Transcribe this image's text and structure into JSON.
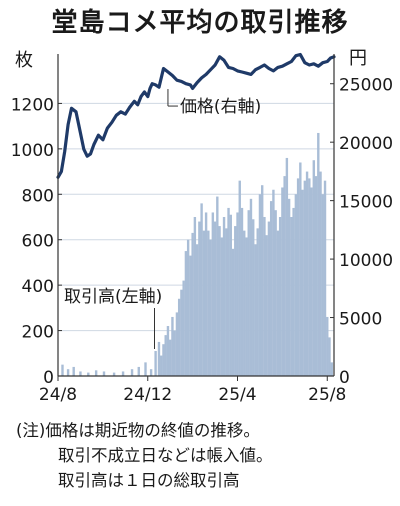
{
  "title": "堂島コメ平均の取引推移",
  "notes": {
    "line1": "(注)価格は期近物の終値の推移。",
    "line2": "取引不成立日などは帳入値。",
    "line3": "取引高は１日の総取引高"
  },
  "chart_data": {
    "type": "bar+line",
    "title": "堂島コメ平均の取引推移",
    "left_axis": {
      "unit": "枚",
      "ylim": [
        0,
        1400
      ],
      "ticks": [
        0,
        200,
        400,
        600,
        800,
        1000,
        1200
      ]
    },
    "right_axis": {
      "unit": "円",
      "ylim": [
        0,
        27200
      ],
      "ticks": [
        0,
        5000,
        10000,
        15000,
        20000,
        25000
      ]
    },
    "x_ticks": [
      "24/8",
      "24/12",
      "25/4",
      "25/8"
    ],
    "x_tick_positions": [
      0,
      4,
      8,
      12
    ],
    "x_range_months": [
      0,
      12.3
    ],
    "annotations": {
      "price": "価格(右軸)",
      "volume": "取引高(左軸)"
    },
    "colors": {
      "line": "#1f3a68",
      "bars": "#a9bdd6",
      "grid": "#cfd8e3"
    },
    "grid": true,
    "series": [
      {
        "name": "価格(右軸)",
        "kind": "line",
        "axis": "right",
        "x": [
          0,
          0.15,
          0.3,
          0.45,
          0.6,
          0.8,
          1.0,
          1.15,
          1.3,
          1.45,
          1.6,
          1.8,
          2.0,
          2.2,
          2.4,
          2.6,
          2.8,
          3.0,
          3.2,
          3.4,
          3.55,
          3.7,
          3.85,
          4.0,
          4.1,
          4.2,
          4.35,
          4.5,
          4.7,
          4.9,
          5.1,
          5.3,
          5.5,
          5.7,
          5.9,
          6.0,
          6.2,
          6.4,
          6.6,
          6.8,
          7.0,
          7.2,
          7.4,
          7.6,
          7.8,
          8.0,
          8.2,
          8.4,
          8.6,
          8.8,
          9.0,
          9.2,
          9.4,
          9.6,
          9.8,
          10.0,
          10.2,
          10.4,
          10.6,
          10.8,
          11.0,
          11.2,
          11.4,
          11.6,
          11.8,
          12.0,
          12.15,
          12.3
        ],
        "values": [
          17000,
          17500,
          19200,
          21500,
          22900,
          22600,
          20800,
          19400,
          18800,
          19000,
          19800,
          20600,
          20200,
          21200,
          21700,
          22300,
          22600,
          22400,
          23000,
          23500,
          23200,
          23900,
          24300,
          23900,
          24600,
          25000,
          24900,
          24700,
          26300,
          26000,
          25700,
          25300,
          25200,
          25000,
          24900,
          24600,
          25100,
          25500,
          25800,
          26200,
          26600,
          27300,
          27000,
          26400,
          26300,
          26100,
          26000,
          25900,
          25800,
          26200,
          26400,
          26600,
          26300,
          26100,
          26400,
          26500,
          26700,
          26900,
          27400,
          27500,
          26800,
          26600,
          26700,
          26500,
          26800,
          26900,
          27200,
          27300
        ]
      },
      {
        "name": "取引高(左軸)",
        "kind": "bar",
        "axis": "left",
        "x": [
          0.2,
          0.45,
          0.7,
          1.0,
          1.35,
          1.7,
          2.05,
          2.5,
          2.9,
          3.3,
          3.6,
          3.9,
          4.15,
          4.35,
          4.5,
          4.6,
          4.7,
          4.8,
          4.9,
          5.0,
          5.1,
          5.2,
          5.3,
          5.4,
          5.5,
          5.6,
          5.7,
          5.8,
          5.9,
          6.0,
          6.1,
          6.2,
          6.3,
          6.4,
          6.5,
          6.6,
          6.7,
          6.8,
          6.9,
          7.0,
          7.1,
          7.2,
          7.3,
          7.4,
          7.5,
          7.6,
          7.7,
          7.8,
          7.9,
          8.0,
          8.1,
          8.2,
          8.3,
          8.4,
          8.5,
          8.6,
          8.7,
          8.8,
          8.9,
          9.0,
          9.1,
          9.2,
          9.3,
          9.4,
          9.5,
          9.6,
          9.7,
          9.8,
          9.9,
          10.0,
          10.1,
          10.2,
          10.3,
          10.4,
          10.5,
          10.6,
          10.7,
          10.8,
          10.9,
          11.0,
          11.1,
          11.2,
          11.3,
          11.4,
          11.5,
          11.6,
          11.7,
          11.8,
          11.9,
          12.0,
          12.1,
          12.2
        ],
        "values": [
          50,
          30,
          40,
          20,
          15,
          25,
          20,
          15,
          20,
          30,
          40,
          60,
          30,
          110,
          150,
          90,
          140,
          180,
          220,
          160,
          260,
          200,
          280,
          340,
          380,
          420,
          550,
          600,
          530,
          630,
          700,
          580,
          680,
          760,
          640,
          720,
          640,
          600,
          720,
          680,
          790,
          660,
          610,
          700,
          650,
          740,
          710,
          560,
          660,
          720,
          860,
          740,
          640,
          610,
          730,
          780,
          690,
          580,
          650,
          800,
          840,
          700,
          620,
          680,
          770,
          820,
          730,
          640,
          700,
          830,
          880,
          960,
          780,
          700,
          740,
          800,
          870,
          940,
          820,
          860,
          900,
          870,
          830,
          950,
          880,
          1070,
          900,
          800,
          860,
          260,
          170,
          60
        ]
      }
    ]
  }
}
